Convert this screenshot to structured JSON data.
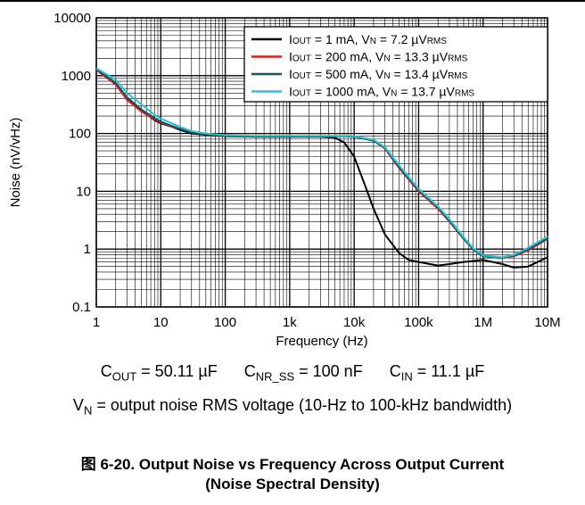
{
  "chart_data": {
    "type": "line",
    "xscale": "log",
    "yscale": "log",
    "xlim": [
      1,
      10000000
    ],
    "ylim": [
      0.1,
      10000
    ],
    "xlabel": "Frequency (Hz)",
    "ylabel": "Noise (nV/vHz)",
    "x_tick_labels": [
      "1",
      "10",
      "100",
      "1k",
      "10k",
      "100k",
      "1M",
      "10M"
    ],
    "y_tick_labels": [
      "0.1",
      "1",
      "10",
      "100",
      "1000",
      "10000"
    ],
    "grid": true,
    "legend_position": "top-right",
    "legend": [
      {
        "pre": "I",
        "sub1": "OUT",
        "mid": " = 1 mA, V",
        "sub2": "N",
        "post": " = 7.2 µV",
        "sub3": "RMS"
      },
      {
        "pre": "I",
        "sub1": "OUT",
        "mid": " = 200 mA, V",
        "sub2": "N",
        "post": " = 13.3 µV",
        "sub3": "RMS"
      },
      {
        "pre": "I",
        "sub1": "OUT",
        "mid": " = 500 mA, V",
        "sub2": "N",
        "post": " = 13.4 µV",
        "sub3": "RMS"
      },
      {
        "pre": "I",
        "sub1": "OUT",
        "mid": " = 1000 mA, V",
        "sub2": "N",
        "post": " = 13.7 µV",
        "sub3": "RMS"
      }
    ],
    "series": [
      {
        "name": "IOUT = 1 mA, VN = 7.2 µVRMS",
        "color": "#000000",
        "points": [
          [
            1,
            1300
          ],
          [
            2,
            700
          ],
          [
            3,
            400
          ],
          [
            5,
            250
          ],
          [
            8,
            170
          ],
          [
            10,
            150
          ],
          [
            15,
            130
          ],
          [
            20,
            115
          ],
          [
            30,
            100
          ],
          [
            50,
            95
          ],
          [
            100,
            90
          ],
          [
            300,
            88
          ],
          [
            1000,
            88
          ],
          [
            3000,
            88
          ],
          [
            5000,
            85
          ],
          [
            7000,
            70
          ],
          [
            10000,
            40
          ],
          [
            15000,
            12
          ],
          [
            20000,
            5
          ],
          [
            30000,
            1.8
          ],
          [
            50000,
            0.85
          ],
          [
            70000,
            0.65
          ],
          [
            100000,
            0.6
          ],
          [
            200000,
            0.52
          ],
          [
            300000,
            0.55
          ],
          [
            500000,
            0.6
          ],
          [
            1000000,
            0.65
          ],
          [
            2000000,
            0.55
          ],
          [
            3000000,
            0.48
          ],
          [
            5000000,
            0.5
          ],
          [
            10000000,
            0.72
          ]
        ]
      },
      {
        "name": "IOUT = 200 mA, VN = 13.3 µVRMS",
        "color": "#e31a1c",
        "points": [
          [
            1,
            1250
          ],
          [
            2,
            700
          ],
          [
            3,
            380
          ],
          [
            5,
            240
          ],
          [
            8,
            175
          ],
          [
            10,
            155
          ],
          [
            15,
            130
          ],
          [
            20,
            120
          ],
          [
            30,
            105
          ],
          [
            50,
            98
          ],
          [
            100,
            92
          ],
          [
            300,
            90
          ],
          [
            1000,
            90
          ],
          [
            3000,
            90
          ],
          [
            7000,
            90
          ],
          [
            10000,
            88
          ],
          [
            20000,
            75
          ],
          [
            30000,
            55
          ],
          [
            50000,
            25
          ],
          [
            100000,
            10
          ],
          [
            200000,
            5
          ],
          [
            300000,
            3
          ],
          [
            500000,
            1.5
          ],
          [
            700000,
            1.0
          ],
          [
            1000000,
            0.75
          ],
          [
            2000000,
            0.7
          ],
          [
            3000000,
            0.75
          ],
          [
            5000000,
            0.95
          ],
          [
            10000000,
            1.5
          ]
        ]
      },
      {
        "name": "IOUT = 500 mA, VN = 13.4 µVRMS",
        "color": "#14545e",
        "points": [
          [
            1,
            1300
          ],
          [
            2,
            750
          ],
          [
            3,
            420
          ],
          [
            5,
            260
          ],
          [
            8,
            185
          ],
          [
            10,
            160
          ],
          [
            15,
            135
          ],
          [
            20,
            120
          ],
          [
            30,
            105
          ],
          [
            50,
            98
          ],
          [
            100,
            92
          ],
          [
            300,
            90
          ],
          [
            1000,
            90
          ],
          [
            3000,
            90
          ],
          [
            7000,
            90
          ],
          [
            10000,
            88
          ],
          [
            20000,
            75
          ],
          [
            30000,
            56
          ],
          [
            50000,
            26
          ],
          [
            100000,
            10.5
          ],
          [
            200000,
            5.2
          ],
          [
            300000,
            3.1
          ],
          [
            500000,
            1.5
          ],
          [
            700000,
            1.0
          ],
          [
            1000000,
            0.75
          ],
          [
            2000000,
            0.7
          ],
          [
            3000000,
            0.78
          ],
          [
            5000000,
            1.0
          ],
          [
            10000000,
            1.55
          ]
        ]
      },
      {
        "name": "IOUT = 1000 mA, VN = 13.7 µVRMS",
        "color": "#29c3d6",
        "points": [
          [
            1,
            1350
          ],
          [
            2,
            850
          ],
          [
            3,
            500
          ],
          [
            5,
            320
          ],
          [
            8,
            210
          ],
          [
            10,
            180
          ],
          [
            15,
            150
          ],
          [
            20,
            130
          ],
          [
            30,
            110
          ],
          [
            50,
            100
          ],
          [
            100,
            93
          ],
          [
            300,
            91
          ],
          [
            1000,
            91
          ],
          [
            3000,
            91
          ],
          [
            7000,
            91
          ],
          [
            10000,
            90
          ],
          [
            20000,
            78
          ],
          [
            30000,
            58
          ],
          [
            50000,
            28
          ],
          [
            100000,
            11
          ],
          [
            200000,
            5.5
          ],
          [
            300000,
            3.3
          ],
          [
            500000,
            1.6
          ],
          [
            700000,
            1.05
          ],
          [
            1000000,
            0.78
          ],
          [
            2000000,
            0.72
          ],
          [
            3000000,
            0.8
          ],
          [
            5000000,
            1.05
          ],
          [
            10000000,
            1.65
          ]
        ]
      }
    ]
  },
  "captions": {
    "cout": {
      "main": "C",
      "sub": "OUT",
      "rest": " = 50.11 µF"
    },
    "cnr": {
      "main": "C",
      "sub": "NR_SS",
      "rest": " = 100 nF"
    },
    "cin": {
      "main": "C",
      "sub": "IN",
      "rest": " = 11.1 µF"
    },
    "vn": {
      "main": "V",
      "sub": "N",
      "rest": " = output noise RMS voltage (10-Hz to 100-kHz bandwidth)"
    }
  },
  "figure_title_line1": "图 6-20. Output Noise vs Frequency Across Output Current",
  "figure_title_line2": "(Noise Spectral Density)"
}
